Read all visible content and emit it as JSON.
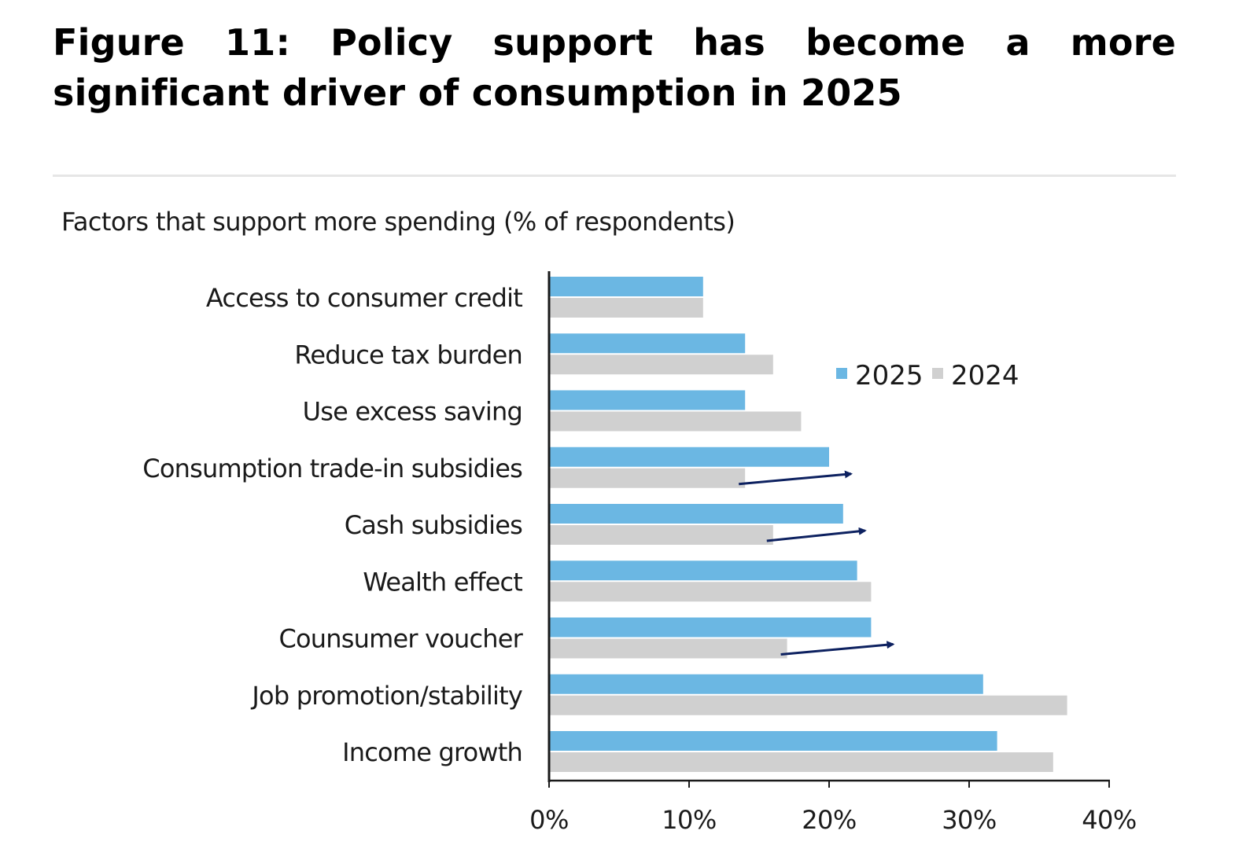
{
  "figure": {
    "title": "Figure 11: Policy support has become a more significant driver of consumption in 2025",
    "subtitle": "Factors that support more spending (% of respondents)"
  },
  "chart_data": {
    "type": "bar",
    "orientation": "horizontal",
    "categories": [
      "Access to consumer credit",
      "Reduce tax burden",
      "Use excess saving",
      "Consumption trade-in subsidies",
      "Cash subsidies",
      "Wealth effect",
      "Counsumer voucher",
      "Job promotion/stability",
      "Income growth"
    ],
    "series": [
      {
        "name": "2025",
        "color": "#6bb7e3",
        "values": [
          11,
          14,
          14,
          20,
          21,
          22,
          23,
          31,
          32
        ]
      },
      {
        "name": "2024",
        "color": "#d0d0d0",
        "values": [
          11,
          16,
          18,
          14,
          16,
          23,
          17,
          37,
          36
        ]
      }
    ],
    "x_ticks": [
      "0%",
      "10%",
      "20%",
      "30%",
      "40%"
    ],
    "xlim": [
      0,
      40
    ],
    "unit": "%",
    "legend_position": "top-right",
    "grid": false,
    "annotations": [
      {
        "type": "arrow",
        "category": "Consumption trade-in subsidies",
        "color": "#0d2160"
      },
      {
        "type": "arrow",
        "category": "Cash subsidies",
        "color": "#0d2160"
      },
      {
        "type": "arrow",
        "category": "Counsumer voucher",
        "color": "#0d2160"
      }
    ]
  }
}
